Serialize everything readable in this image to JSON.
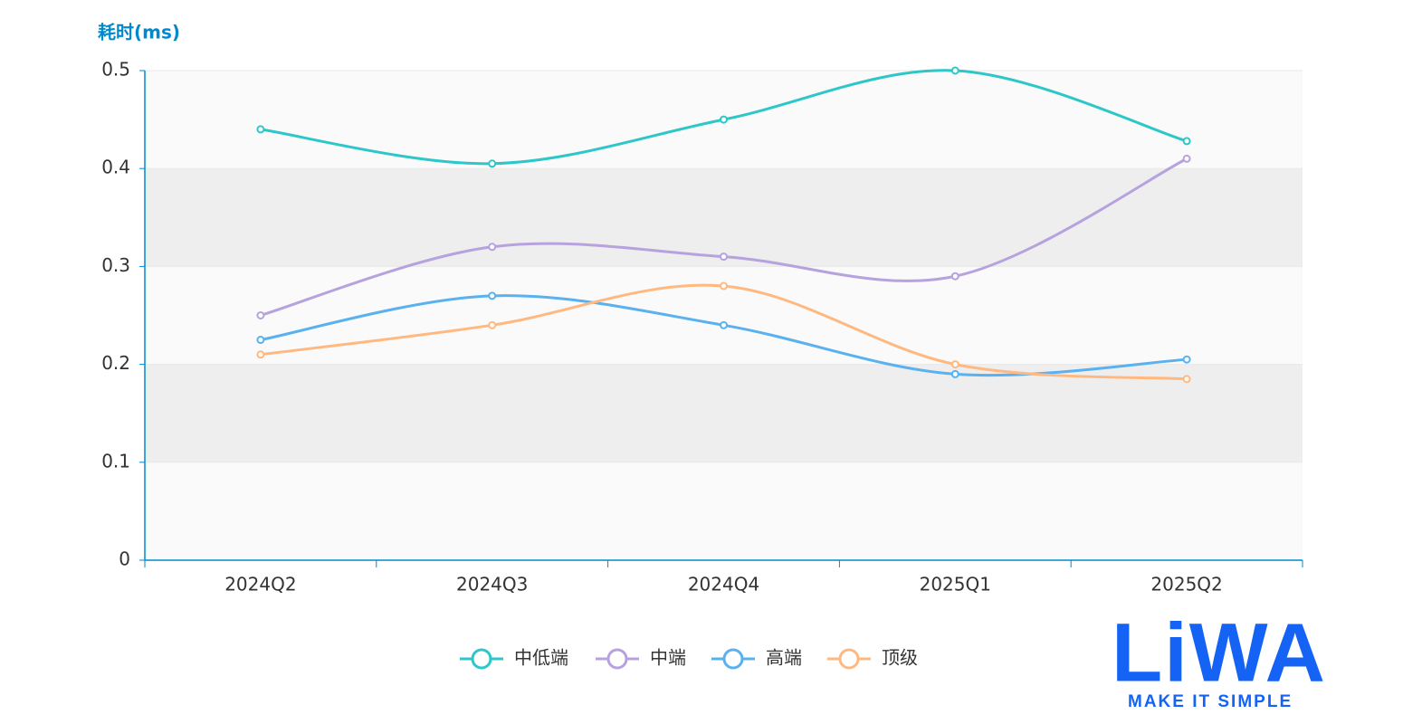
{
  "chart_data": {
    "type": "line",
    "y_label": "耗时(ms)",
    "categories": [
      "2024Q2",
      "2024Q3",
      "2024Q4",
      "2025Q1",
      "2025Q2"
    ],
    "series": [
      {
        "name": "中低端",
        "color": "#2ec7c9",
        "values": [
          0.44,
          0.405,
          0.45,
          0.5,
          0.428
        ]
      },
      {
        "name": "中端",
        "color": "#b6a2de",
        "values": [
          0.25,
          0.32,
          0.31,
          0.29,
          0.41
        ]
      },
      {
        "name": "高端",
        "color": "#5ab1ef",
        "values": [
          0.225,
          0.27,
          0.24,
          0.19,
          0.205
        ]
      },
      {
        "name": "顶级",
        "color": "#ffb980",
        "values": [
          0.21,
          0.24,
          0.28,
          0.2,
          0.185
        ]
      }
    ],
    "ylim": [
      0,
      0.5
    ],
    "yticks": [
      0,
      0.1,
      0.2,
      0.3,
      0.4,
      0.5
    ],
    "smooth": true,
    "axis_color": "#008acd",
    "split_area": [
      "#fafafa",
      "#eeeeee"
    ],
    "legend": "bottom"
  },
  "logo": {
    "text": "LiWA",
    "tagline": "MAKE IT SIMPLE"
  }
}
